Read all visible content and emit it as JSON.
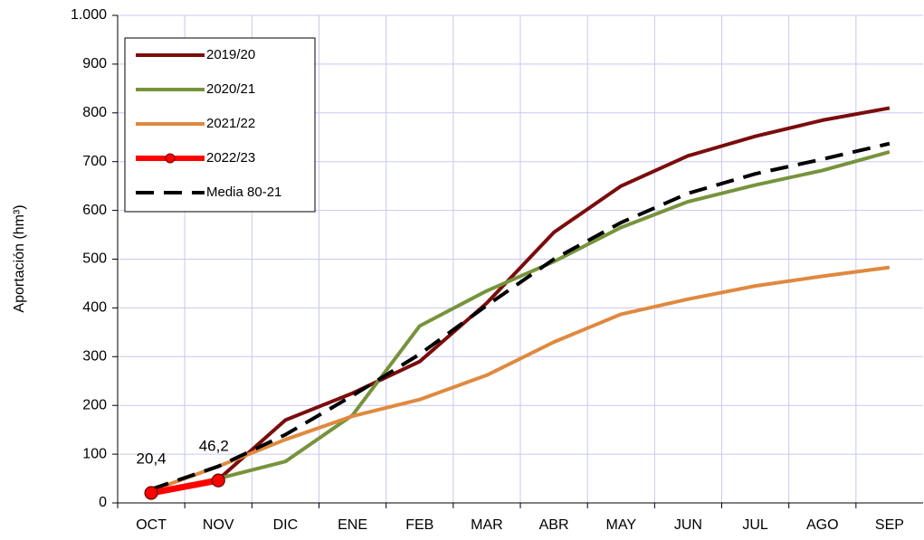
{
  "chart_data": {
    "type": "line",
    "y_label": "Aportación (hm³)",
    "categories": [
      "OCT",
      "NOV",
      "DIC",
      "ENE",
      "FEB",
      "MAR",
      "ABR",
      "MAY",
      "JUN",
      "JUL",
      "AGO",
      "SEP"
    ],
    "ylim": [
      0,
      1000
    ],
    "yticks": [
      0,
      100,
      200,
      300,
      400,
      500,
      600,
      700,
      800,
      900,
      {
        "value": 1000,
        "label": "1.000"
      }
    ],
    "grid": true,
    "legend": "upper left",
    "series": [
      {
        "name": "2019/20",
        "color": "#7b0c0c",
        "values": [
          20,
          48,
          170,
          225,
          290,
          410,
          555,
          650,
          712,
          752,
          785,
          810
        ]
      },
      {
        "name": "2020/21",
        "color": "#77933c",
        "values": [
          20,
          50,
          85,
          180,
          363,
          435,
          495,
          565,
          618,
          652,
          682,
          720
        ]
      },
      {
        "name": "2021/22",
        "color": "#e0893f",
        "values": [
          25,
          75,
          130,
          178,
          212,
          262,
          330,
          387,
          418,
          445,
          465,
          483
        ]
      },
      {
        "name": "2022/23",
        "color": "#ff0000",
        "marker": true,
        "values": [
          20.4,
          46.2,
          null,
          null,
          null,
          null,
          null,
          null,
          null,
          null,
          null,
          null
        ],
        "value_labels": [
          "20,4",
          "46,2",
          null,
          null,
          null,
          null,
          null,
          null,
          null,
          null,
          null,
          null
        ]
      },
      {
        "name": "Media 80-21",
        "color": "#000000",
        "dashed": true,
        "values": [
          28,
          75,
          140,
          220,
          305,
          405,
          500,
          575,
          635,
          675,
          705,
          737
        ]
      }
    ]
  }
}
